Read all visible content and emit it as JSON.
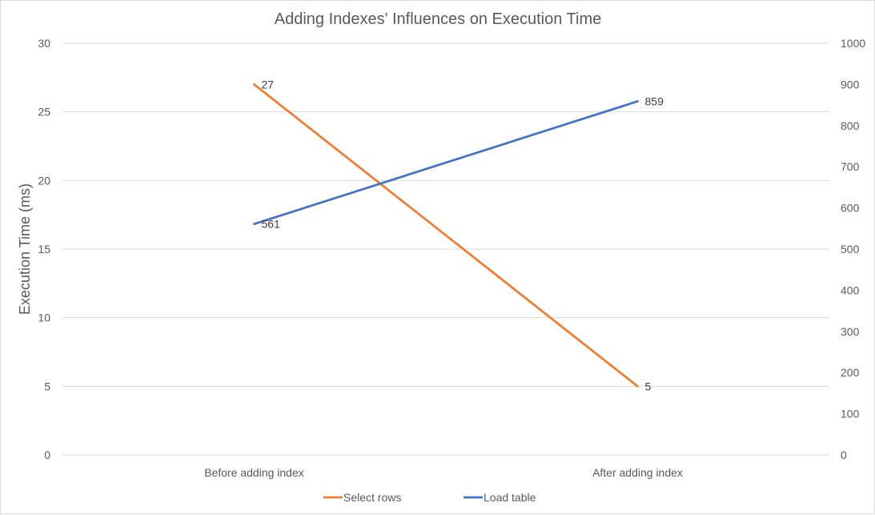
{
  "chart_data": {
    "type": "line",
    "title": "Adding Indexes' Influences on Execution Time",
    "categories": [
      "Before adding index",
      "After adding index"
    ],
    "ylabel": "Execution Time (ms)",
    "ylim": [
      0,
      30
    ],
    "yticks": [
      0,
      5,
      10,
      15,
      20,
      25,
      30
    ],
    "y2lim": [
      0,
      1000
    ],
    "y2ticks": [
      0,
      100,
      200,
      300,
      400,
      500,
      600,
      700,
      800,
      900,
      1000
    ],
    "grid": true,
    "legend_position": "bottom",
    "series": [
      {
        "name": "Select rows",
        "axis": "primary",
        "values": [
          27,
          5
        ],
        "labels": [
          "27",
          "5"
        ],
        "color": "#ed7d31"
      },
      {
        "name": "Load table",
        "axis": "secondary",
        "values": [
          561,
          859
        ],
        "labels": [
          "561",
          "859"
        ],
        "color": "#4472c4"
      }
    ]
  }
}
